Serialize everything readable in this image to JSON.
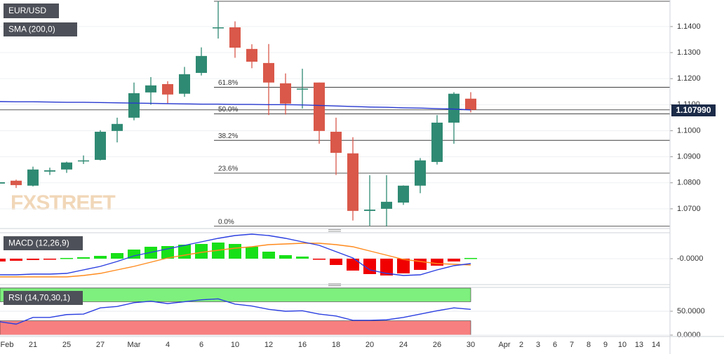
{
  "chart_data": [
    {
      "type": "candlestick",
      "title": "EUR/USD",
      "logo": "FXSTREET",
      "categories": [
        "Feb",
        null,
        "21",
        null,
        "25",
        null,
        "27",
        null,
        "Mar",
        null,
        "4",
        null,
        "6",
        null,
        "10",
        null,
        "12",
        null,
        "16",
        null,
        "18",
        null,
        "20",
        null,
        "24",
        null,
        "26",
        null,
        "30",
        null,
        "Apr",
        "2",
        "3",
        "6",
        "7",
        "8",
        "9",
        "10",
        "13",
        "14"
      ],
      "open": [
        1.0797,
        1.0808,
        1.0789,
        1.0843,
        1.0851,
        1.0882,
        1.0888,
        1.0999,
        1.105,
        1.1147,
        1.1179,
        1.1142,
        1.1222,
        1.1394,
        1.1397,
        1.1314,
        1.126,
        1.1182,
        1.1158,
        1.1185,
        1.0996,
        1.0913,
        1.0692,
        1.07,
        1.0724,
        1.0789,
        1.088,
        1.1031,
        1.1123,
        null,
        null,
        null,
        null,
        null,
        null,
        null,
        null,
        null,
        null,
        null
      ],
      "high": [
        1.0806,
        1.0812,
        1.0862,
        1.0858,
        1.0881,
        1.0905,
        1.1002,
        1.105,
        1.1185,
        1.1206,
        1.119,
        1.1245,
        1.132,
        1.1497,
        1.142,
        1.1332,
        1.1333,
        1.122,
        1.1238,
        1.1185,
        1.105,
        1.0975,
        1.0829,
        1.0829,
        1.079,
        1.0895,
        1.106,
        1.1148,
        1.1148,
        null,
        null,
        null,
        null,
        null,
        null,
        null,
        null,
        null,
        null,
        null
      ],
      "low": [
        1.0795,
        1.078,
        1.0786,
        1.083,
        1.0838,
        1.0872,
        1.0886,
        1.0955,
        1.104,
        1.11,
        1.1105,
        1.113,
        1.1212,
        1.1354,
        1.128,
        1.124,
        1.106,
        1.1062,
        1.1085,
        1.095,
        1.083,
        1.0655,
        1.0635,
        1.0633,
        1.0715,
        1.076,
        1.087,
        1.095,
        1.107,
        null,
        null,
        null,
        null,
        null,
        null,
        null,
        null,
        null,
        null,
        null
      ],
      "close": [
        1.0802,
        1.0791,
        1.0851,
        1.0848,
        1.0878,
        1.0886,
        1.0996,
        1.1026,
        1.1144,
        1.1174,
        1.1139,
        1.1217,
        1.1287,
        1.1397,
        1.1319,
        1.1265,
        1.1185,
        1.1104,
        1.1162,
        1.0999,
        1.0915,
        1.0692,
        1.0697,
        1.0727,
        1.0789,
        1.0886,
        1.1031,
        1.1142,
        1.108,
        null,
        null,
        null,
        null,
        null,
        null,
        null,
        null,
        null,
        null,
        null
      ],
      "up_color": "#2f8a73",
      "down_color": "#d9584a",
      "series": [
        {
          "name": "SMA (200,0)",
          "color": "#2637cf",
          "values": [
            1.1112,
            1.1111,
            1.1111,
            1.111,
            1.1109,
            1.1109,
            1.1108,
            1.1107,
            1.1106,
            1.1105,
            1.1104,
            1.1103,
            1.1102,
            1.1102,
            1.1101,
            1.1101,
            1.11,
            1.11,
            1.1099,
            1.1097,
            1.1095,
            1.1093,
            1.1091,
            1.109,
            1.1088,
            1.1087,
            1.1085,
            1.1083,
            1.108,
            null,
            null,
            null,
            null,
            null,
            null,
            null,
            null,
            null,
            null,
            null
          ]
        }
      ],
      "levels": [
        {
          "label": "0.0%",
          "value": 1.0633
        },
        {
          "label": "23.6%",
          "value": 1.0837
        },
        {
          "label": "38.2%",
          "value": 1.0963
        },
        {
          "label": "50.0%",
          "value": 1.1065
        },
        {
          "label": "61.8%",
          "value": 1.1167
        },
        {
          "value": 1.1497
        }
      ],
      "last_price": {
        "value": 1.10799,
        "label": "1.107990"
      },
      "ylim": [
        1.0627,
        1.1502
      ],
      "yticks": [
        {
          "value": 1.07,
          "label": "1.0700"
        },
        {
          "value": 1.08,
          "label": "1.0800"
        },
        {
          "value": 1.09,
          "label": "1.0900"
        },
        {
          "value": 1.1,
          "label": "1.1000"
        },
        {
          "value": 1.11,
          "label": "1.1100"
        },
        {
          "value": 1.12,
          "label": "1.1200"
        },
        {
          "value": 1.13,
          "label": "1.1300"
        },
        {
          "value": 1.14,
          "label": "1.1400"
        }
      ],
      "grid": true
    },
    {
      "type": "macd",
      "title": "MACD (12,26,9)",
      "histogram": [
        -0.0004,
        -0.0003,
        -0.0002,
        -0.0001,
        0.0001,
        0.0002,
        0.0004,
        0.0008,
        0.0013,
        0.0017,
        0.0018,
        0.002,
        0.0021,
        0.0023,
        0.0021,
        0.0017,
        0.001,
        0.0005,
        0.0003,
        -0.0001,
        -0.0009,
        -0.0017,
        -0.0022,
        -0.0024,
        -0.0021,
        -0.0016,
        -0.001,
        -0.0004,
        0.0001,
        null,
        null,
        null,
        null,
        null,
        null,
        null,
        null,
        null,
        null,
        null
      ],
      "macd": [
        -0.0023,
        -0.0023,
        -0.0022,
        -0.0022,
        -0.0021,
        -0.0016,
        -0.0011,
        -0.0004,
        0.0004,
        0.0009,
        0.0014,
        0.0019,
        0.0024,
        0.0029,
        0.0033,
        0.0035,
        0.0033,
        0.0029,
        0.0024,
        0.0019,
        0.001,
        0.0001,
        -0.0016,
        -0.0021,
        -0.0024,
        -0.0023,
        -0.0016,
        -0.001,
        -0.0007,
        null,
        null,
        null,
        null,
        null,
        null,
        null,
        null,
        null,
        null,
        null
      ],
      "signal": [
        -0.0026,
        -0.0026,
        -0.0026,
        -0.0026,
        -0.0026,
        -0.0024,
        -0.0021,
        -0.0016,
        -0.0011,
        -0.0005,
        0.0001,
        0.0005,
        0.0009,
        0.0012,
        0.0015,
        0.0017,
        0.002,
        0.0021,
        0.0022,
        0.0022,
        0.002,
        0.0017,
        0.0011,
        0.0005,
        -0.0001,
        -0.0004,
        -0.0007,
        -0.0008,
        -0.0009,
        null,
        null,
        null,
        null,
        null,
        null,
        null,
        null,
        null,
        null,
        null
      ],
      "macd_color": "#2b3fe0",
      "signal_color": "#ff8a1c",
      "up_color": "#18e018",
      "down_color": "#f00000",
      "ylim": [
        -0.0036,
        0.0036
      ],
      "yticks": [
        {
          "value": 0,
          "label": "-0.0000"
        }
      ]
    },
    {
      "type": "rsi",
      "title": "RSI (14,70,30,1)",
      "values": [
        28,
        23,
        37,
        37,
        43,
        44,
        57,
        60,
        68,
        71,
        66,
        70,
        74,
        76,
        65,
        61,
        54,
        50,
        51,
        44,
        40,
        31,
        31,
        32,
        37,
        44,
        51,
        57,
        54,
        null,
        null,
        null,
        null,
        null,
        null,
        null,
        null,
        null,
        null,
        null
      ],
      "color": "#2b3fe0",
      "overbought": 70,
      "oversold": 30,
      "overbought_color": "#7ef07e",
      "oversold_color": "#f77f7f",
      "ylim": [
        0,
        100
      ],
      "yticks": [
        {
          "value": 0,
          "label": "0.0000"
        },
        {
          "value": 50,
          "label": "50.0000"
        }
      ]
    }
  ]
}
